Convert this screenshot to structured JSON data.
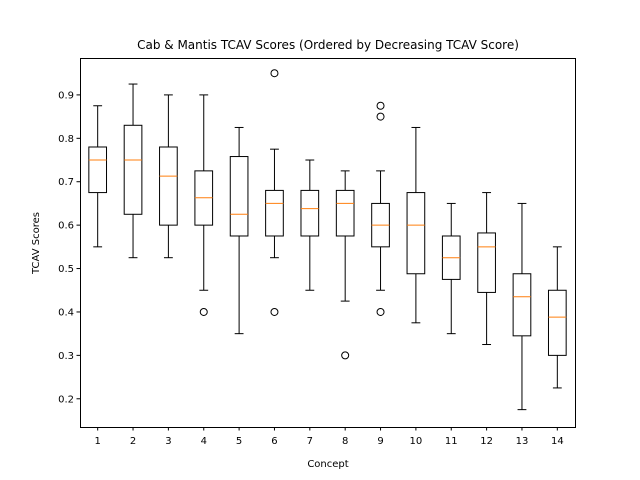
{
  "chart_data": {
    "type": "box",
    "title": "Cab & Mantis TCAV Scores (Ordered by Decreasing TCAV Score)",
    "xlabel": "Concept",
    "ylabel": "TCAV Scores",
    "ylim": [
      0.135,
      0.985
    ],
    "yticks": [
      0.2,
      0.3,
      0.4,
      0.5,
      0.6,
      0.7,
      0.8,
      0.9
    ],
    "grid": false,
    "colors": {
      "box": "#000000",
      "median": "#ff7f0e",
      "background": "#ffffff"
    },
    "categories": [
      "1",
      "2",
      "3",
      "4",
      "5",
      "6",
      "7",
      "8",
      "9",
      "10",
      "11",
      "12",
      "13",
      "14"
    ],
    "boxes": [
      {
        "whisker_low": 0.55,
        "q1": 0.675,
        "median": 0.75,
        "q3": 0.78,
        "whisker_high": 0.875,
        "outliers": []
      },
      {
        "whisker_low": 0.525,
        "q1": 0.625,
        "median": 0.75,
        "q3": 0.83,
        "whisker_high": 0.925,
        "outliers": []
      },
      {
        "whisker_low": 0.525,
        "q1": 0.6,
        "median": 0.713,
        "q3": 0.78,
        "whisker_high": 0.9,
        "outliers": []
      },
      {
        "whisker_low": 0.45,
        "q1": 0.6,
        "median": 0.663,
        "q3": 0.725,
        "whisker_high": 0.9,
        "outliers": [
          0.4
        ]
      },
      {
        "whisker_low": 0.35,
        "q1": 0.575,
        "median": 0.625,
        "q3": 0.758,
        "whisker_high": 0.825,
        "outliers": []
      },
      {
        "whisker_low": 0.525,
        "q1": 0.575,
        "median": 0.65,
        "q3": 0.68,
        "whisker_high": 0.775,
        "outliers": [
          0.4,
          0.95
        ]
      },
      {
        "whisker_low": 0.45,
        "q1": 0.575,
        "median": 0.638,
        "q3": 0.68,
        "whisker_high": 0.75,
        "outliers": []
      },
      {
        "whisker_low": 0.425,
        "q1": 0.575,
        "median": 0.65,
        "q3": 0.68,
        "whisker_high": 0.725,
        "outliers": [
          0.3
        ]
      },
      {
        "whisker_low": 0.45,
        "q1": 0.55,
        "median": 0.6,
        "q3": 0.65,
        "whisker_high": 0.725,
        "outliers": [
          0.4,
          0.85,
          0.875
        ]
      },
      {
        "whisker_low": 0.375,
        "q1": 0.488,
        "median": 0.6,
        "q3": 0.675,
        "whisker_high": 0.825,
        "outliers": []
      },
      {
        "whisker_low": 0.35,
        "q1": 0.475,
        "median": 0.525,
        "q3": 0.575,
        "whisker_high": 0.65,
        "outliers": []
      },
      {
        "whisker_low": 0.325,
        "q1": 0.445,
        "median": 0.55,
        "q3": 0.582,
        "whisker_high": 0.675,
        "outliers": []
      },
      {
        "whisker_low": 0.175,
        "q1": 0.345,
        "median": 0.435,
        "q3": 0.488,
        "whisker_high": 0.65,
        "outliers": []
      },
      {
        "whisker_low": 0.225,
        "q1": 0.3,
        "median": 0.388,
        "q3": 0.45,
        "whisker_high": 0.55,
        "outliers": []
      }
    ]
  }
}
